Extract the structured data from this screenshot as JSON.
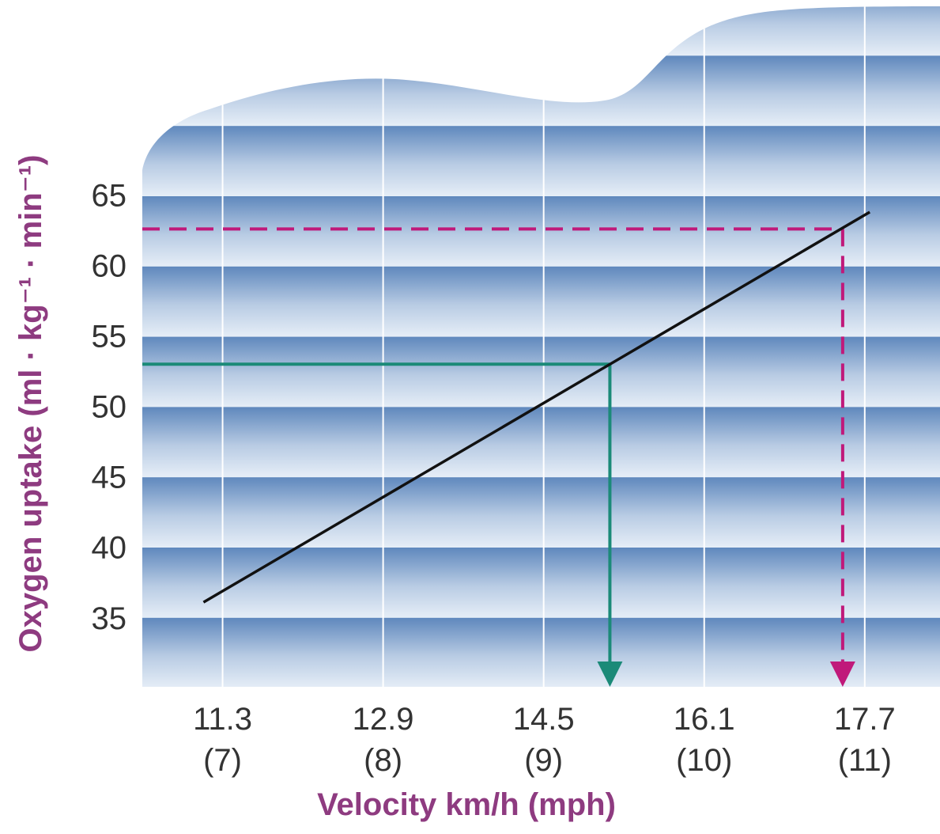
{
  "chart_data": {
    "type": "line",
    "x_label": "Velocity km/h (mph)",
    "y_label": "Oxygen uptake (ml · kg⁻¹ · min⁻¹)",
    "xlim": [
      10.5,
      18.45
    ],
    "ylim": [
      30.1,
      78.4
    ],
    "xticks": [
      11.3,
      12.9,
      14.5,
      16.1,
      17.7
    ],
    "xtick_sublabels": [
      "(7)",
      "(8)",
      "(9)",
      "(10)",
      "(11)"
    ],
    "yticks": [
      35,
      40,
      45,
      50,
      55,
      60,
      65
    ],
    "grid": true,
    "series": [
      {
        "color": "#111111",
        "x": [
          11.11,
          17.75
        ],
        "values": [
          36.1,
          63.8
        ]
      }
    ],
    "guides": [
      {
        "x": 15.16,
        "y": 53,
        "color": "#1b8a78",
        "dashed": false
      },
      {
        "x": 17.48,
        "y": 62.6,
        "color": "#c0197a",
        "dashed": true
      }
    ]
  }
}
